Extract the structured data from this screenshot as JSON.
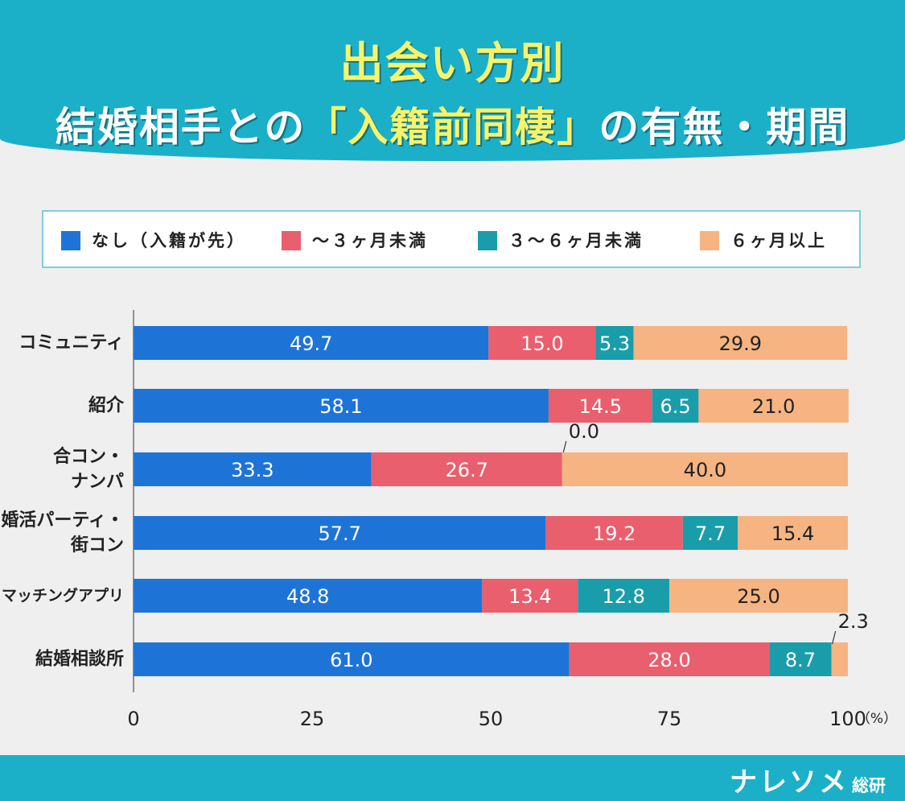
{
  "title": {
    "line1": "出会い方別",
    "line2_pre": "結婚相手との",
    "line2_bracket_open": "「",
    "line2_highlight": "入籍前同棲",
    "line2_bracket_close": "」",
    "line2_post": "の有無・期間"
  },
  "brand": {
    "name": "ナレソメ",
    "suffix": "総研"
  },
  "colors": {
    "header": "#1bb0c8",
    "title_yellow": "#f9f36a",
    "series": [
      "#1e74d6",
      "#e95f6e",
      "#1a9daa",
      "#f6b482"
    ]
  },
  "chart_data": {
    "type": "bar",
    "orientation": "horizontal",
    "stacked": true,
    "categories": [
      [
        "コミュニティ"
      ],
      [
        "紹介"
      ],
      [
        "合コン・",
        "ナンパ"
      ],
      [
        "婚活パーティ・",
        "街コン"
      ],
      [
        "マッチングアプリ"
      ],
      [
        "結婚相談所"
      ]
    ],
    "series": [
      {
        "name": "なし（入籍が先）",
        "values": [
          49.7,
          58.1,
          33.3,
          57.7,
          48.8,
          61.0
        ]
      },
      {
        "name": "～３ヶ月未満",
        "values": [
          15.0,
          14.5,
          26.7,
          19.2,
          13.4,
          28.0
        ]
      },
      {
        "name": "３～６ヶ月未満",
        "values": [
          5.3,
          6.5,
          0.0,
          7.7,
          12.8,
          8.7
        ]
      },
      {
        "name": "６ヶ月以上",
        "values": [
          29.9,
          21.0,
          40.0,
          15.4,
          25.0,
          2.3
        ]
      }
    ],
    "xlim": [
      0,
      100
    ],
    "xticks": [
      "0",
      "25",
      "50",
      "75",
      "100"
    ],
    "x_unit": "（%）",
    "grid": false,
    "legend": "top"
  }
}
